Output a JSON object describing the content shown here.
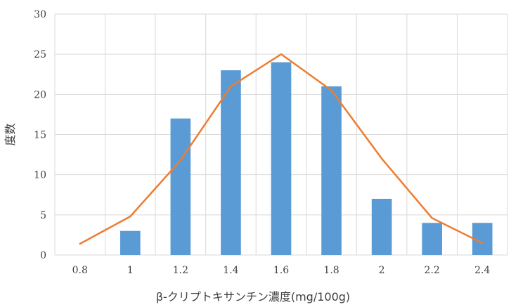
{
  "chart_data": {
    "type": "bar",
    "title": "",
    "xlabel": "β-クリプトキサンチン濃度(mg/100g)",
    "ylabel": "度数",
    "categories": [
      "0.8",
      "1",
      "1.2",
      "1.4",
      "1.6",
      "1.8",
      "2",
      "2.2",
      "2.4"
    ],
    "ylim": [
      0,
      30
    ],
    "yticks": [
      0,
      5,
      10,
      15,
      20,
      25,
      30
    ],
    "grid": true,
    "legend": "none",
    "series": [
      {
        "type": "bar",
        "values": [
          0,
          3,
          17,
          23,
          24,
          21,
          7,
          4,
          4
        ],
        "color": "#5b9bd5"
      },
      {
        "type": "line",
        "values": [
          1.4,
          4.8,
          11.8,
          21.0,
          25.0,
          20.5,
          12.0,
          4.6,
          1.5
        ],
        "color": "#ed7d31"
      }
    ]
  }
}
